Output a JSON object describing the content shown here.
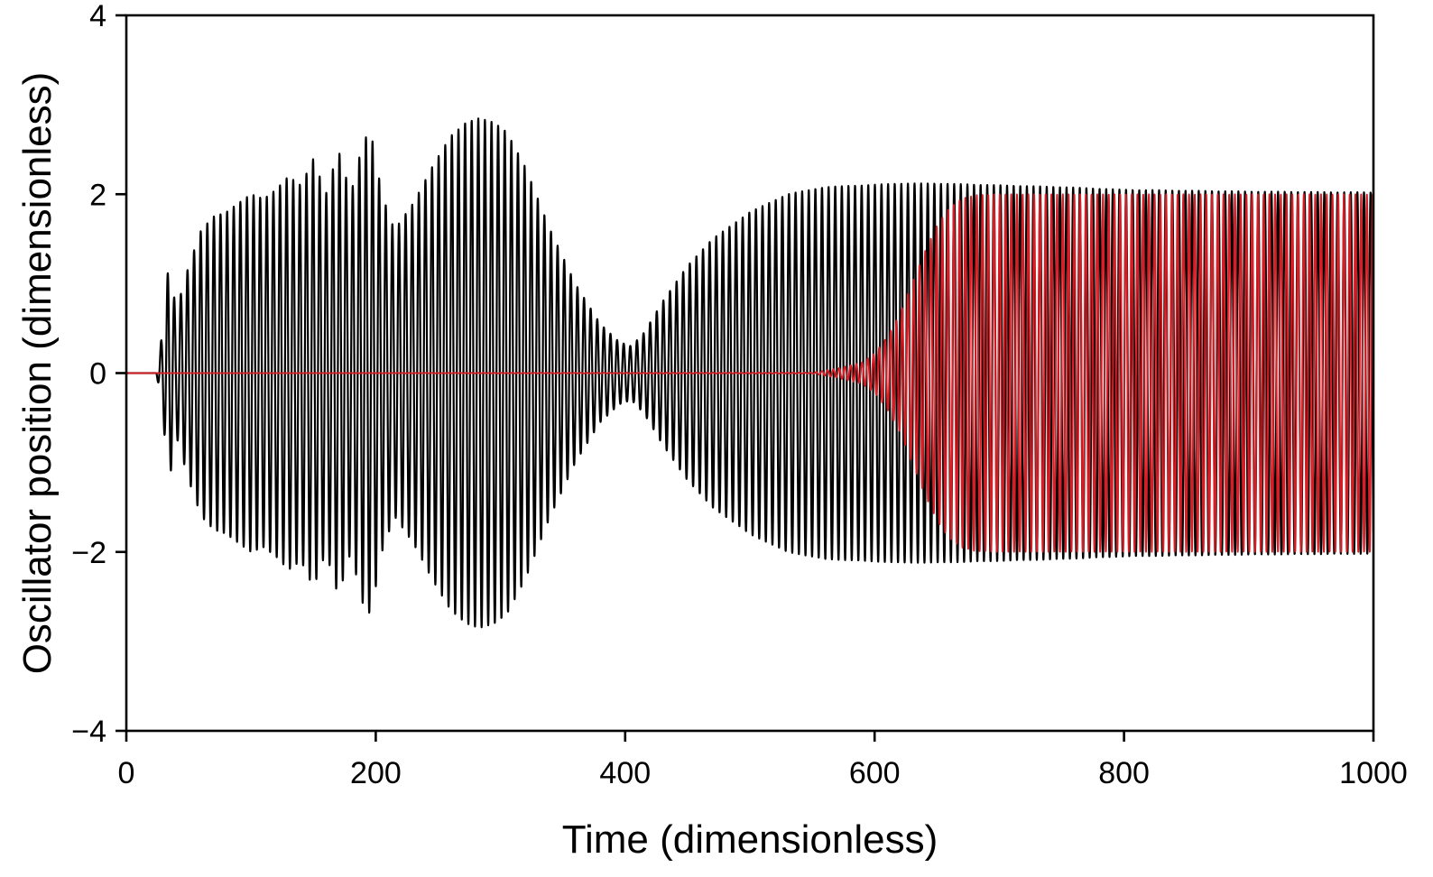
{
  "chart_data": {
    "type": "line",
    "title": "",
    "xlabel": "Time (dimensionless)",
    "ylabel": "Oscillator position (dimensionless)",
    "xlim": [
      0,
      1000
    ],
    "ylim": [
      -4,
      4
    ],
    "xticks": [
      0,
      200,
      400,
      600,
      800,
      1000
    ],
    "yticks": [
      4,
      2,
      0,
      -2,
      -4
    ],
    "xtick_labels": [
      "0",
      "200",
      "400",
      "600",
      "800",
      "1000"
    ],
    "ytick_labels": [
      "4",
      "2",
      "0",
      "−2",
      "−4"
    ],
    "grid": false,
    "legend": "none",
    "series": [
      {
        "color": "#000000",
        "period": 5.3,
        "envelope": {
          "t": [
            0,
            24,
            26,
            30,
            34,
            40,
            50,
            60,
            70,
            80,
            90,
            100,
            110,
            120,
            130,
            140,
            150,
            160,
            170,
            180,
            190,
            196,
            205,
            215,
            230,
            245,
            260,
            272,
            283,
            295,
            305,
            320,
            340,
            360,
            380,
            395,
            405,
            415,
            430,
            450,
            470,
            500,
            530,
            560,
            590,
            620,
            650,
            700,
            750,
            800,
            900,
            1000
          ],
          "amp": [
            0,
            0,
            0.15,
            0.6,
            1.25,
            0.7,
            1.2,
            1.6,
            1.75,
            1.8,
            1.9,
            2.0,
            1.95,
            2.05,
            2.2,
            2.1,
            2.4,
            2.0,
            2.5,
            2.0,
            2.6,
            2.7,
            2.0,
            1.6,
            1.9,
            2.3,
            2.65,
            2.8,
            2.85,
            2.8,
            2.7,
            2.3,
            1.6,
            1.0,
            0.55,
            0.35,
            0.3,
            0.45,
            0.8,
            1.2,
            1.5,
            1.8,
            2.0,
            2.08,
            2.1,
            2.12,
            2.12,
            2.1,
            2.08,
            2.05,
            2.03,
            2.02
          ]
        }
      },
      {
        "color": "#d41f26",
        "period": 4.6,
        "envelope": {
          "t": [
            0,
            550,
            570,
            590,
            600,
            610,
            620,
            630,
            640,
            650,
            660,
            670,
            680,
            700,
            750,
            1000
          ],
          "amp": [
            0,
            0.005,
            0.05,
            0.12,
            0.22,
            0.4,
            0.65,
            1.0,
            1.35,
            1.65,
            1.85,
            1.95,
            1.99,
            2.0,
            2.0,
            2.0
          ]
        }
      }
    ]
  }
}
